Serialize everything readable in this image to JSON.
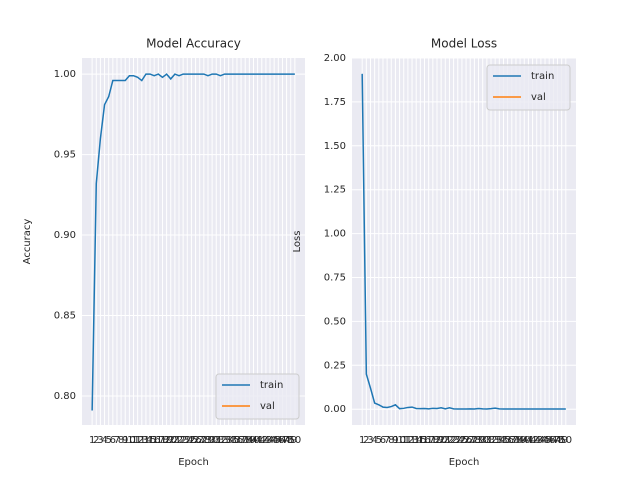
{
  "chart_data": [
    {
      "type": "line",
      "title": "Model Accuracy",
      "x_label": "Epoch",
      "y_label": "Accuracy",
      "x": [
        1,
        2,
        3,
        4,
        5,
        6,
        7,
        8,
        9,
        10,
        11,
        12,
        13,
        14,
        15,
        16,
        17,
        18,
        19,
        20,
        21,
        22,
        23,
        24,
        25,
        26,
        27,
        28,
        29,
        30,
        31,
        32,
        33,
        34,
        35,
        36,
        37,
        38,
        39,
        40,
        41,
        42,
        43,
        44,
        45,
        46,
        47,
        48,
        49,
        50
      ],
      "series": [
        {
          "name": "train",
          "color": "#1f77b4",
          "values": [
            0.791,
            0.932,
            0.96,
            0.981,
            0.986,
            0.996,
            0.996,
            0.996,
            0.996,
            0.999,
            0.999,
            0.998,
            0.996,
            1.0,
            1.0,
            0.999,
            1.0,
            0.998,
            1.0,
            0.997,
            1.0,
            0.999,
            1.0,
            1.0,
            1.0,
            1.0,
            1.0,
            1.0,
            0.999,
            1.0,
            1.0,
            0.999,
            1.0,
            1.0,
            1.0,
            1.0,
            1.0,
            1.0,
            1.0,
            1.0,
            1.0,
            1.0,
            1.0,
            1.0,
            1.0,
            1.0,
            1.0,
            1.0,
            1.0,
            1.0
          ]
        },
        {
          "name": "val",
          "color": "#ff7f0e",
          "values": [
            null,
            null,
            null,
            null,
            null,
            null,
            null,
            null,
            null,
            null,
            null,
            null,
            null,
            null,
            null,
            null,
            null,
            null,
            null,
            null,
            null,
            null,
            null,
            null,
            null,
            null,
            null,
            null,
            null,
            null,
            null,
            null,
            null,
            null,
            null,
            null,
            null,
            null,
            null,
            null,
            null,
            null,
            null,
            null,
            null,
            null,
            null,
            null,
            null,
            null
          ]
        }
      ],
      "xlim": [
        -1.45,
        52.45
      ],
      "xticks": [
        1,
        2,
        3,
        4,
        5,
        6,
        7,
        8,
        9,
        10,
        11,
        12,
        13,
        14,
        15,
        16,
        17,
        18,
        19,
        20,
        21,
        22,
        23,
        24,
        25,
        26,
        27,
        28,
        29,
        30,
        31,
        32,
        33,
        34,
        35,
        36,
        37,
        38,
        39,
        40,
        41,
        42,
        43,
        44,
        45,
        46,
        47,
        48,
        49,
        50
      ],
      "ylim": [
        0.782,
        1.01
      ],
      "yticks": [
        {
          "value": 0.8,
          "label": "0.80"
        },
        0.85,
        {
          "value": 0.9,
          "label": "0.90"
        },
        0.95,
        {
          "value": 1.0,
          "label": "1.00"
        }
      ],
      "grid": true,
      "legend": "lower right"
    },
    {
      "type": "line",
      "title": "Model Loss",
      "x_label": "Epoch",
      "y_label": "Loss",
      "x": [
        1,
        2,
        3,
        4,
        5,
        6,
        7,
        8,
        9,
        10,
        11,
        12,
        13,
        14,
        15,
        16,
        17,
        18,
        19,
        20,
        21,
        22,
        23,
        24,
        25,
        26,
        27,
        28,
        29,
        30,
        31,
        32,
        33,
        34,
        35,
        36,
        37,
        38,
        39,
        40,
        41,
        42,
        43,
        44,
        45,
        46,
        47,
        48,
        49,
        50
      ],
      "series": [
        {
          "name": "train",
          "color": "#1f77b4",
          "values": [
            1.91,
            0.2,
            0.12,
            0.035,
            0.025,
            0.012,
            0.01,
            0.015,
            0.025,
            0.003,
            0.005,
            0.01,
            0.012,
            0.004,
            0.003,
            0.004,
            0.002,
            0.005,
            0.004,
            0.008,
            0.002,
            0.008,
            0.002,
            0.001,
            0.001,
            0.001,
            0.002,
            0.001,
            0.004,
            0.002,
            0.001,
            0.003,
            0.006,
            0.002,
            0.001,
            0.001,
            0.001,
            0.001,
            0.001,
            0.001,
            0.001,
            0.001,
            0.001,
            0.001,
            0.001,
            0.001,
            0.001,
            0.001,
            0.001,
            0.001
          ]
        },
        {
          "name": "val",
          "color": "#ff7f0e",
          "values": [
            null,
            null,
            null,
            null,
            null,
            null,
            null,
            null,
            null,
            null,
            null,
            null,
            null,
            null,
            null,
            null,
            null,
            null,
            null,
            null,
            null,
            null,
            null,
            null,
            null,
            null,
            null,
            null,
            null,
            null,
            null,
            null,
            null,
            null,
            null,
            null,
            null,
            null,
            null,
            null,
            null,
            null,
            null,
            null,
            null,
            null,
            null,
            null,
            null,
            null
          ]
        }
      ],
      "xlim": [
        -1.45,
        52.45
      ],
      "xticks": [
        1,
        2,
        3,
        4,
        5,
        6,
        7,
        8,
        9,
        10,
        11,
        12,
        13,
        14,
        15,
        16,
        17,
        18,
        19,
        20,
        21,
        22,
        23,
        24,
        25,
        26,
        27,
        28,
        29,
        30,
        31,
        32,
        33,
        34,
        35,
        36,
        37,
        38,
        39,
        40,
        41,
        42,
        43,
        44,
        45,
        46,
        47,
        48,
        49,
        50
      ],
      "ylim": [
        -0.09,
        2.0
      ],
      "yticks": [
        {
          "value": 0.0,
          "label": "0.00"
        },
        0.25,
        {
          "value": 0.5,
          "label": "0.50"
        },
        0.75,
        {
          "value": 1.0,
          "label": "1.00"
        },
        1.25,
        {
          "value": 1.5,
          "label": "1.50"
        },
        1.75,
        {
          "value": 2.0,
          "label": "2.00"
        }
      ],
      "grid": true,
      "legend": "upper right"
    }
  ]
}
